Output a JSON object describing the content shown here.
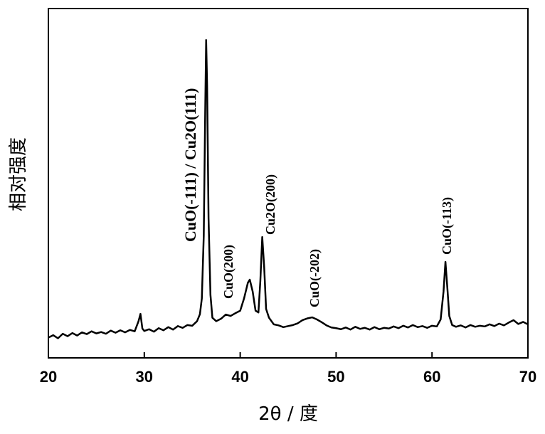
{
  "chart_data": {
    "type": "line",
    "xlabel": "2θ / 度",
    "ylabel": "相对强度",
    "xlim": [
      20,
      70
    ],
    "xticks": [
      20,
      30,
      40,
      50,
      60,
      70
    ],
    "ylim": [
      0,
      100
    ],
    "annotations": [
      "CuO(-111) / Cu2O(111)",
      "CuO(200)",
      "Cu2O(200)",
      "CuO(-202)",
      "CuO(-113)"
    ],
    "series": [
      {
        "color": "#000000",
        "x": [
          20,
          20.5,
          21,
          21.5,
          22,
          22.5,
          23,
          23.5,
          24,
          24.5,
          25,
          25.5,
          26,
          26.5,
          27,
          27.5,
          28,
          28.5,
          29,
          29.4,
          29.6,
          29.8,
          30,
          30.5,
          31,
          31.5,
          32,
          32.5,
          33,
          33.5,
          34,
          34.5,
          35,
          35.5,
          35.8,
          36,
          36.2,
          36.35,
          36.45,
          36.55,
          36.7,
          36.9,
          37.1,
          37.5,
          38,
          38.5,
          39,
          39.5,
          40,
          40.4,
          40.8,
          41,
          41.3,
          41.6,
          41.9,
          42.1,
          42.3,
          42.5,
          42.7,
          43,
          43.5,
          44,
          44.5,
          45,
          45.5,
          46,
          46.5,
          47,
          47.5,
          48,
          48.5,
          49,
          49.5,
          50,
          50.5,
          51,
          51.5,
          52,
          52.5,
          53,
          53.5,
          54,
          54.5,
          55,
          55.5,
          56,
          56.5,
          57,
          57.5,
          58,
          58.5,
          59,
          59.5,
          60,
          60.5,
          60.9,
          61.2,
          61.4,
          61.6,
          61.8,
          62.1,
          62.5,
          63,
          63.5,
          64,
          64.5,
          65,
          65.5,
          66,
          66.5,
          67,
          67.5,
          68,
          68.5,
          69,
          69.5,
          70
        ],
        "values": [
          5.8,
          6.5,
          5.6,
          6.9,
          6.2,
          7.1,
          6.4,
          7.3,
          6.8,
          7.6,
          7.0,
          7.4,
          6.9,
          7.8,
          7.2,
          7.9,
          7.3,
          8.0,
          7.6,
          10.5,
          12.6,
          8.4,
          7.7,
          8.2,
          7.5,
          8.5,
          7.9,
          8.8,
          8.1,
          9.1,
          8.6,
          9.4,
          9.2,
          10.5,
          12.5,
          17,
          35,
          70,
          91,
          78,
          40,
          18,
          11.5,
          10.5,
          11.2,
          12.4,
          12.0,
          12.8,
          13.5,
          17,
          21.5,
          22.4,
          19,
          13.5,
          13,
          22,
          34.6,
          26,
          14,
          11.5,
          9.6,
          9.3,
          8.8,
          9.1,
          9.4,
          9.9,
          10.8,
          11.3,
          11.6,
          11.0,
          10.2,
          9.3,
          8.7,
          8.5,
          8.2,
          8.7,
          8.1,
          8.9,
          8.3,
          8.6,
          8.1,
          8.8,
          8.2,
          8.6,
          8.4,
          9.0,
          8.5,
          9.2,
          8.7,
          9.4,
          8.8,
          9.1,
          8.6,
          9.2,
          9.0,
          11,
          19,
          27.5,
          20,
          12,
          9.4,
          8.9,
          9.3,
          8.7,
          9.4,
          8.9,
          9.2,
          9.0,
          9.6,
          9.1,
          9.8,
          9.3,
          10.1,
          10.8,
          9.7,
          10.3,
          9.6
        ]
      }
    ]
  }
}
